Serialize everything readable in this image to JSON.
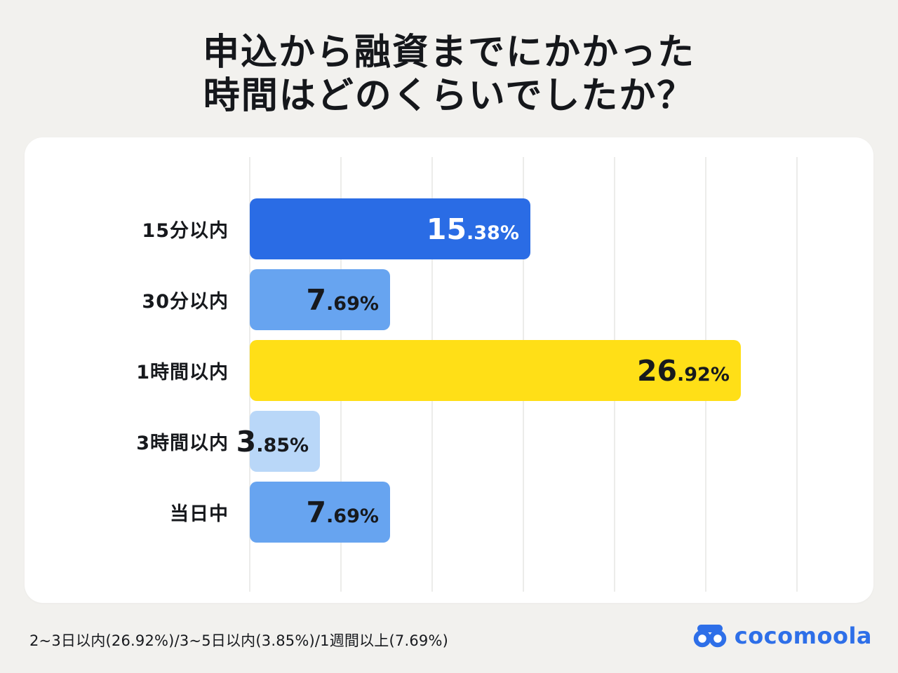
{
  "page": {
    "title_line1": "申込から融資までにかかった",
    "title_line2": "時間はどのくらいでしたか？"
  },
  "chart_data": {
    "type": "bar",
    "orientation": "horizontal",
    "title": "申込から融資までにかかった時間はどのくらいでしたか？",
    "categories": [
      "15分以内",
      "30分以内",
      "1時間以内",
      "3時間以内",
      "当日中"
    ],
    "values": [
      15.38,
      7.69,
      26.92,
      3.85,
      7.69
    ],
    "value_labels": [
      "15.38%",
      "7.69%",
      "26.92%",
      "3.85%",
      "7.69%"
    ],
    "bar_colors": [
      "#2a6ce5",
      "#67a4f0",
      "#ffdf17",
      "#b9d7f8",
      "#67a4f0"
    ],
    "value_label_colors": [
      "#ffffff",
      "#17191d",
      "#17191d",
      "#17191d",
      "#17191d"
    ],
    "xlim": [
      0,
      30
    ],
    "gridline_step": 5,
    "grid": true,
    "legend": false
  },
  "footer": {
    "note": "2~3日以内(26.92%)/3~5日以内(3.85%)/1週間以上(7.69%)",
    "brand": "cocomoola"
  },
  "colors": {
    "background": "#f2f1ee",
    "card": "#ffffff",
    "title": "#15171b",
    "gridline": "#ececea",
    "brand_blue": "#2e6fe8"
  }
}
